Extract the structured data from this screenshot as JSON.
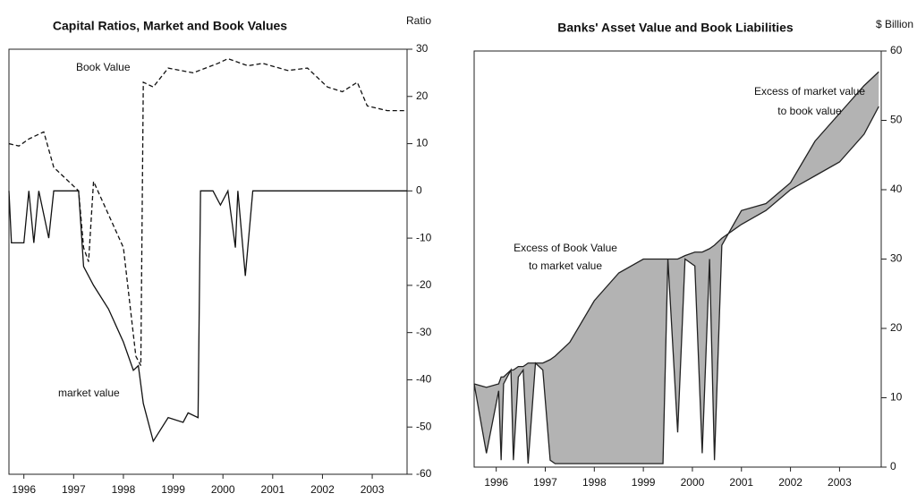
{
  "chart_data": [
    {
      "type": "line",
      "title": "Capital Ratios, Market and Book Values",
      "y_label": "Ratio",
      "xlim": [
        1996.2,
        2004.2
      ],
      "xticks": [
        {
          "value": 1996.5,
          "label": "1996"
        },
        {
          "value": 1997.5,
          "label": "1997"
        },
        {
          "value": 1998.5,
          "label": "1998"
        },
        {
          "value": 1999.5,
          "label": "1999"
        },
        {
          "value": 2000.5,
          "label": "2000"
        },
        {
          "value": 2001.5,
          "label": "2001"
        },
        {
          "value": 2002.5,
          "label": "2002"
        },
        {
          "value": 2003.5,
          "label": "2003"
        }
      ],
      "ylim": [
        -60,
        30
      ],
      "yticks": [
        -60,
        -50,
        -40,
        -30,
        -20,
        -10,
        0,
        10,
        20,
        30
      ],
      "annotations": [
        "Book Value",
        "market value"
      ],
      "series": [
        {
          "color": "#111111",
          "line_style": "dashed",
          "x": [
            1996.2,
            1996.4,
            1996.6,
            1996.8,
            1996.9,
            1997.1,
            1997.3,
            1997.5,
            1997.6,
            1997.7,
            1997.8,
            1997.9,
            1998.2,
            1998.5,
            1998.75,
            1998.85,
            1998.9,
            1999.1,
            1999.4,
            1999.9,
            2000.4,
            2000.6,
            2001.0,
            2001.3,
            2001.8,
            2002.2,
            2002.6,
            2002.9,
            2003.2,
            2003.4,
            2003.8,
            2004.2
          ],
          "values": [
            10,
            9.5,
            11,
            12,
            12.5,
            5,
            3,
            1,
            0,
            -12,
            -15,
            2,
            -5,
            -12,
            -35,
            -37,
            23,
            22,
            26,
            25,
            27,
            28,
            26.5,
            27,
            25.5,
            26,
            22,
            21,
            23,
            18,
            17,
            17
          ]
        },
        {
          "color": "#111111",
          "line_style": "solid",
          "x": [
            1996.2,
            1996.25,
            1996.5,
            1996.6,
            1996.7,
            1996.8,
            1997.0,
            1997.1,
            1997.5,
            1997.6,
            1997.7,
            1997.9,
            1998.2,
            1998.5,
            1998.7,
            1998.8,
            1998.9,
            1999.1,
            1999.4,
            1999.7,
            1999.8,
            2000.0,
            2000.05,
            2000.3,
            2000.45,
            2000.6,
            2000.75,
            2000.8,
            2000.95,
            2001.1,
            2004.2
          ],
          "values": [
            0,
            -11,
            -11,
            0,
            -11,
            0,
            -10,
            0,
            0,
            0,
            -16,
            -20,
            -25,
            -32,
            -38,
            -37,
            -45,
            -53,
            -48,
            -49,
            -47,
            -48,
            0,
            0,
            -3,
            0,
            -12,
            0,
            -18,
            0,
            0
          ]
        }
      ]
    },
    {
      "type": "line",
      "title": "Banks' Asset Value and Book Liabilities",
      "y_label": "$ Billion",
      "xlim": [
        1996.05,
        2004.35
      ],
      "xticks": [
        {
          "value": 1996.5,
          "label": "1996"
        },
        {
          "value": 1997.5,
          "label": "1997"
        },
        {
          "value": 1998.5,
          "label": "1998"
        },
        {
          "value": 1999.5,
          "label": "1999"
        },
        {
          "value": 2000.5,
          "label": "2000"
        },
        {
          "value": 2001.5,
          "label": "2001"
        },
        {
          "value": 2002.5,
          "label": "2002"
        },
        {
          "value": 2003.5,
          "label": "2003"
        }
      ],
      "ylim": [
        0,
        60
      ],
      "yticks": [
        0,
        10,
        20,
        30,
        40,
        50,
        60
      ],
      "annotations": [
        "Excess of market value",
        "to book value",
        "Excess of Book Value",
        "to market value"
      ],
      "fill_between": "#9a9a9a",
      "series": [
        {
          "color": "#222222",
          "line_style": "solid",
          "x": [
            1996.05,
            1996.3,
            1996.55,
            1996.6,
            1996.65,
            1996.8,
            1996.85,
            1996.95,
            1997.05,
            1997.15,
            1997.3,
            1997.45,
            1997.6,
            1997.7,
            1998.0,
            1998.5,
            1999.0,
            1999.5,
            1999.9,
            2000.0,
            2000.2,
            2000.35,
            2000.55,
            2000.7,
            2000.85,
            2000.95,
            2001.1,
            2001.5,
            2002.0,
            2002.5,
            2003.0,
            2003.5,
            2004.0,
            2004.3
          ],
          "values": [
            12,
            11.5,
            12,
            13,
            13,
            14,
            14,
            14.5,
            14.5,
            15,
            15,
            15,
            15.5,
            16,
            18,
            24,
            28,
            30,
            30,
            30,
            30,
            30.5,
            31,
            31,
            31.5,
            32,
            33,
            35,
            37,
            40,
            42,
            44,
            48,
            52
          ]
        },
        {
          "color": "#222222",
          "line_style": "solid",
          "x": [
            1996.05,
            1996.3,
            1996.55,
            1996.6,
            1996.65,
            1996.8,
            1996.85,
            1996.95,
            1997.05,
            1997.15,
            1997.3,
            1997.45,
            1997.6,
            1997.7,
            1998.0,
            1998.5,
            1999.0,
            1999.5,
            1999.9,
            2000.0,
            2000.2,
            2000.35,
            2000.55,
            2000.7,
            2000.85,
            2000.95,
            2001.1,
            2001.5,
            2002.0,
            2002.5,
            2003.0,
            2003.5,
            2004.0,
            2004.3
          ],
          "values": [
            12,
            2,
            11,
            1,
            12,
            14,
            1,
            13,
            14,
            0.5,
            15,
            14,
            1,
            0.5,
            0.5,
            0.5,
            0.5,
            0.5,
            0.5,
            30,
            5,
            30,
            29,
            2,
            30,
            1,
            32,
            37,
            38,
            41,
            47,
            51,
            55,
            57
          ]
        }
      ]
    }
  ]
}
